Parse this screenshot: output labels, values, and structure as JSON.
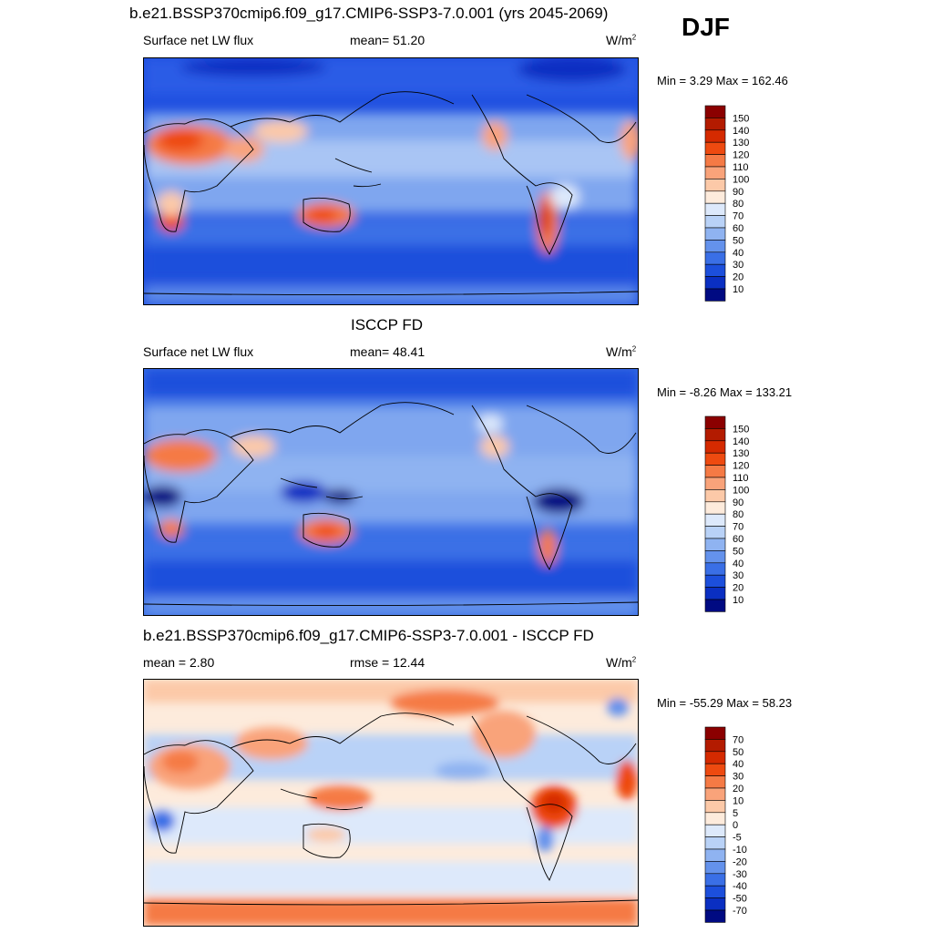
{
  "header": {
    "season": "DJF"
  },
  "panels": [
    {
      "title": "b.e21.BSSP370cmip6.f09_g17.CMIP6-SSP3-7.0.001 (yrs 2045-2069)",
      "left_label": "Surface net LW flux",
      "stat_label": "mean=  51.20",
      "units": "W/m",
      "units_sup": "2",
      "minmax": "Min =   3.29 Max = 162.46",
      "colorbar": {
        "levels": [
          "150",
          "140",
          "130",
          "120",
          "110",
          "100",
          "90",
          "80",
          "70",
          "60",
          "50",
          "40",
          "30",
          "20",
          "10"
        ],
        "colors": [
          "#8b0000",
          "#b31b00",
          "#d52a00",
          "#ee4a10",
          "#f57a45",
          "#f9a37a",
          "#fcc9a8",
          "#fdebdc",
          "#dde9fb",
          "#b9d2f7",
          "#8fb3f1",
          "#6492ec",
          "#3a6fe6",
          "#1c4fdc",
          "#0a2fc2",
          "#000a82"
        ]
      }
    },
    {
      "title": "ISCCP FD",
      "left_label": "Surface net LW flux",
      "stat_label": "mean=  48.41",
      "units": "W/m",
      "units_sup": "2",
      "minmax": "Min =  -8.26 Max = 133.21",
      "colorbar": {
        "levels": [
          "150",
          "140",
          "130",
          "120",
          "110",
          "100",
          "90",
          "80",
          "70",
          "60",
          "50",
          "40",
          "30",
          "20",
          "10"
        ],
        "colors": [
          "#8b0000",
          "#b31b00",
          "#d52a00",
          "#ee4a10",
          "#f57a45",
          "#f9a37a",
          "#fcc9a8",
          "#fdebdc",
          "#dde9fb",
          "#b9d2f7",
          "#8fb3f1",
          "#6492ec",
          "#3a6fe6",
          "#1c4fdc",
          "#0a2fc2",
          "#000a82"
        ]
      }
    },
    {
      "title": "b.e21.BSSP370cmip6.f09_g17.CMIP6-SSP3-7.0.001 - ISCCP FD",
      "left_label": "mean =   2.80",
      "stat_label": "rmse =  12.44",
      "units": "W/m",
      "units_sup": "2",
      "minmax": "Min = -55.29 Max =  58.23",
      "colorbar": {
        "levels": [
          "70",
          "50",
          "40",
          "30",
          "20",
          "10",
          "5",
          "0",
          "-5",
          "-10",
          "-20",
          "-30",
          "-40",
          "-50",
          "-70"
        ],
        "colors": [
          "#8b0000",
          "#b31b00",
          "#d52a00",
          "#ee4a10",
          "#f57a45",
          "#f9a37a",
          "#fcc9a8",
          "#fdebdc",
          "#dde9fb",
          "#b9d2f7",
          "#8fb3f1",
          "#6492ec",
          "#3a6fe6",
          "#1c4fdc",
          "#0a2fc2",
          "#000a82"
        ]
      }
    }
  ]
}
